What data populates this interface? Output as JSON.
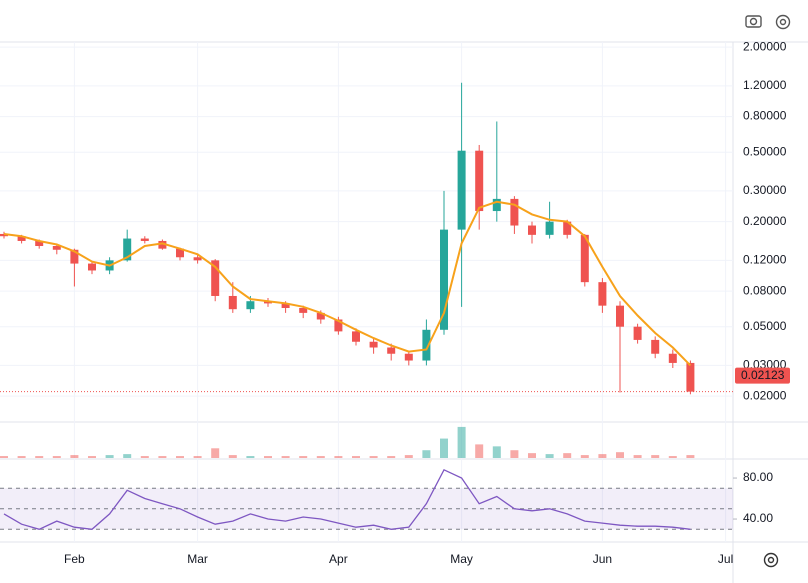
{
  "chart_data": {
    "type": "candlestick",
    "categories": [
      null,
      null,
      null,
      null,
      "Feb",
      null,
      null,
      null,
      null,
      null,
      null,
      "Mar",
      null,
      null,
      null,
      null,
      null,
      null,
      null,
      "Apr",
      null,
      null,
      null,
      null,
      null,
      null,
      "May",
      null,
      null,
      null,
      null,
      null,
      null,
      null,
      "Jun",
      null,
      null,
      null,
      null,
      null,
      null,
      "Jul"
    ],
    "ohlc": {
      "open": [
        0.17,
        0.165,
        0.155,
        0.145,
        0.138,
        0.115,
        0.105,
        0.12,
        0.16,
        0.155,
        0.14,
        0.125,
        0.12,
        0.075,
        0.063,
        0.07,
        0.068,
        0.064,
        0.06,
        0.055,
        0.047,
        0.041,
        0.038,
        0.035,
        0.032,
        0.048,
        0.18,
        0.51,
        0.23,
        0.27,
        0.19,
        0.168,
        0.2,
        0.168,
        0.09,
        0.066,
        0.05,
        0.042,
        0.035,
        0.031,
        null,
        null
      ],
      "high": [
        0.175,
        0.168,
        0.158,
        0.15,
        0.14,
        0.118,
        0.125,
        0.18,
        0.165,
        0.158,
        0.142,
        0.13,
        0.122,
        0.09,
        0.075,
        0.073,
        0.07,
        0.066,
        0.062,
        0.057,
        0.049,
        0.043,
        0.04,
        0.036,
        0.055,
        0.3,
        1.25,
        0.55,
        0.75,
        0.28,
        0.2,
        0.26,
        0.205,
        0.17,
        0.095,
        0.07,
        0.052,
        0.044,
        0.037,
        0.032,
        null,
        null
      ],
      "low": [
        0.16,
        0.15,
        0.14,
        0.13,
        0.085,
        0.1,
        0.1,
        0.118,
        0.15,
        0.138,
        0.12,
        0.115,
        0.07,
        0.06,
        0.06,
        0.065,
        0.06,
        0.056,
        0.052,
        0.045,
        0.039,
        0.035,
        0.032,
        0.03,
        0.03,
        0.045,
        0.065,
        0.18,
        0.2,
        0.17,
        0.15,
        0.16,
        0.16,
        0.085,
        0.06,
        0.021,
        0.04,
        0.033,
        0.029,
        0.0205,
        null,
        null
      ],
      "close": [
        0.165,
        0.155,
        0.145,
        0.138,
        0.115,
        0.105,
        0.12,
        0.16,
        0.155,
        0.14,
        0.125,
        0.12,
        0.075,
        0.063,
        0.07,
        0.068,
        0.064,
        0.06,
        0.055,
        0.047,
        0.041,
        0.038,
        0.035,
        0.032,
        0.048,
        0.18,
        0.51,
        0.23,
        0.27,
        0.19,
        0.168,
        0.2,
        0.168,
        0.09,
        0.066,
        0.05,
        0.042,
        0.035,
        0.031,
        0.02123,
        null,
        null
      ],
      "up_color": "#26a69a",
      "down_color": "#ef5350"
    },
    "moving_average": {
      "color": "#f7a21b",
      "values": [
        0.17,
        0.165,
        0.155,
        0.148,
        0.135,
        0.118,
        0.112,
        0.125,
        0.145,
        0.15,
        0.14,
        0.13,
        0.11,
        0.085,
        0.072,
        0.07,
        0.068,
        0.065,
        0.06,
        0.054,
        0.048,
        0.043,
        0.039,
        0.036,
        0.037,
        0.06,
        0.15,
        0.24,
        0.26,
        0.25,
        0.22,
        0.205,
        0.2,
        0.165,
        0.11,
        0.075,
        0.058,
        0.046,
        0.038,
        0.03,
        null,
        null
      ]
    },
    "ylim": [
      0.0146,
      2.14
    ],
    "log_scale": true,
    "grid": true,
    "yticks": [
      {
        "value": 2,
        "label": "2.00000"
      },
      {
        "value": 1.2,
        "label": "1.20000"
      },
      {
        "value": 0.8,
        "label": "0.80000"
      },
      {
        "value": 0.5,
        "label": "0.50000"
      },
      {
        "value": 0.3,
        "label": "0.30000"
      },
      {
        "value": 0.2,
        "label": "0.20000"
      },
      {
        "value": 0.12,
        "label": "0.12000"
      },
      {
        "value": 0.08,
        "label": "0.08000"
      },
      {
        "value": 0.05,
        "label": "0.05000"
      },
      {
        "value": 0.03,
        "label": "0.03000"
      },
      {
        "value": 0.02,
        "label": "0.02000"
      }
    ],
    "last_price": 0.02123,
    "last_price_color": "#ef5350",
    "volume": {
      "values": [
        2,
        2,
        2,
        2,
        3,
        2,
        3,
        4,
        2,
        2,
        2,
        2,
        10,
        3,
        2,
        2,
        2,
        2,
        2,
        2,
        2,
        2,
        2,
        3,
        8,
        20,
        32,
        14,
        12,
        8,
        5,
        4,
        5,
        3,
        4,
        6,
        3,
        3,
        2,
        3,
        null,
        null
      ],
      "ylim": [
        0,
        35
      ]
    },
    "rsi": {
      "color": "#7e57c2",
      "values": [
        45,
        35,
        30,
        38,
        32,
        30,
        45,
        68,
        60,
        55,
        50,
        42,
        35,
        38,
        45,
        40,
        38,
        42,
        40,
        36,
        32,
        34,
        30,
        32,
        55,
        88,
        80,
        55,
        62,
        50,
        48,
        50,
        45,
        38,
        36,
        34,
        33,
        33,
        32,
        30,
        null,
        null
      ],
      "ylim": [
        17.6,
        97.6
      ],
      "yticks": [
        {
          "value": 80,
          "label": "80.00"
        },
        {
          "value": 40,
          "label": "40.00"
        }
      ],
      "levels": [
        70,
        50,
        30
      ]
    }
  }
}
